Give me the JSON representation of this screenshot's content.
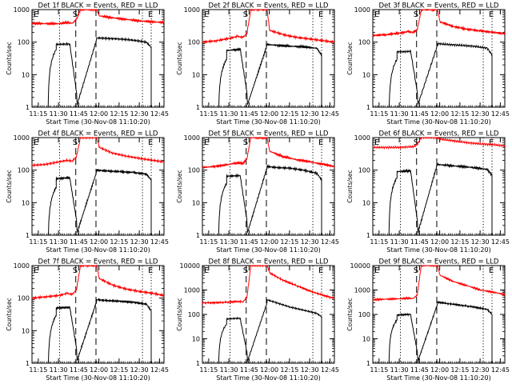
{
  "common": {
    "ylabel": "Counts/sec",
    "xlabel": "Start Time (30-Nov-08 11:10:20)",
    "x_ticks": [
      "11:15",
      "11:30",
      "11:45",
      "12:00",
      "12:15",
      "12:30",
      "12:45"
    ],
    "x_tick_minutes": [
      4.67,
      19.67,
      34.67,
      49.67,
      64.67,
      79.67,
      94.67
    ],
    "x_range_minutes": [
      0,
      98
    ],
    "y_scale": "log",
    "markers": [
      {
        "label": "E",
        "minute": 0,
        "style": "dotted"
      },
      {
        "label": "",
        "minute": 20.5,
        "style": "dotted"
      },
      {
        "label": "S",
        "minute": 32.5,
        "style": "dashed"
      },
      {
        "label": "",
        "minute": 47.5,
        "style": "dashed"
      },
      {
        "label": "",
        "minute": 82.0,
        "style": "dotted"
      },
      {
        "label": "E",
        "minute": 88.5,
        "style": "dotted"
      }
    ],
    "colors": {
      "events": "#000000",
      "lld": "#ff0000"
    }
  },
  "chart_data": [
    {
      "type": "line",
      "title": "Det 1f BLACK = Events, RED = LLD",
      "ylim": [
        1,
        1000
      ],
      "y_ticks": [
        "1",
        "10",
        "100",
        "1000"
      ],
      "series": [
        {
          "name": "BLACK = Events",
          "x": [
            12,
            18,
            18,
            28,
            28,
            33,
            33.5,
            48,
            48,
            55,
            65,
            75,
            85,
            88.5,
            88.5
          ],
          "y": [
            0,
            60,
            85,
            88,
            90,
            3,
            1.2,
            120,
            135,
            130,
            125,
            115,
            100,
            70,
            0
          ]
        },
        {
          "name": "RED = LLD",
          "x": [
            0,
            10,
            20,
            26,
            30,
            33,
            36,
            46,
            48,
            50,
            60,
            70,
            80,
            90,
            98
          ],
          "y": [
            380,
            370,
            370,
            400,
            380,
            500,
            1000,
            1000,
            1000,
            640,
            560,
            500,
            450,
            420,
            400
          ]
        }
      ]
    },
    {
      "type": "line",
      "title": "Det 2f BLACK = Events, RED = LLD",
      "ylim": [
        1,
        1000
      ],
      "y_ticks": [
        "1",
        "10",
        "100",
        "1000"
      ],
      "series": [
        {
          "name": "BLACK = Events",
          "x": [
            12,
            18,
            18,
            28,
            28,
            33,
            33.5,
            48,
            48,
            55,
            65,
            75,
            85,
            88.5,
            88.5
          ],
          "y": [
            0,
            30,
            55,
            60,
            65,
            3,
            1.2,
            80,
            85,
            80,
            75,
            72,
            65,
            40,
            0
          ]
        },
        {
          "name": "RED = LLD",
          "x": [
            0,
            10,
            20,
            26,
            30,
            33,
            36,
            46,
            48,
            50,
            60,
            70,
            80,
            90,
            98
          ],
          "y": [
            100,
            110,
            130,
            150,
            140,
            180,
            1000,
            1000,
            1000,
            230,
            170,
            140,
            125,
            110,
            100
          ]
        }
      ]
    },
    {
      "type": "line",
      "title": "Det 3f BLACK = Events, RED = LLD",
      "ylim": [
        1,
        1000
      ],
      "y_ticks": [
        "1",
        "10",
        "100",
        "1000"
      ],
      "series": [
        {
          "name": "BLACK = Events",
          "x": [
            12,
            18,
            18,
            28,
            28,
            33,
            33.5,
            48,
            48,
            55,
            65,
            75,
            85,
            88.5,
            88.5
          ],
          "y": [
            0,
            30,
            50,
            52,
            55,
            3,
            1.2,
            80,
            90,
            85,
            80,
            75,
            65,
            40,
            0
          ]
        },
        {
          "name": "RED = LLD",
          "x": [
            0,
            10,
            20,
            26,
            30,
            33,
            36,
            46,
            48,
            50,
            60,
            70,
            80,
            90,
            98
          ],
          "y": [
            160,
            170,
            190,
            210,
            200,
            240,
            1000,
            1000,
            1000,
            420,
            300,
            250,
            220,
            200,
            180
          ]
        }
      ]
    },
    {
      "type": "line",
      "title": "Det 4f BLACK = Events, RED = LLD",
      "ylim": [
        1,
        1000
      ],
      "y_ticks": [
        "1",
        "10",
        "100",
        "1000"
      ],
      "series": [
        {
          "name": "BLACK = Events",
          "x": [
            12,
            18,
            18,
            28,
            28,
            33,
            33.5,
            48,
            48,
            55,
            65,
            75,
            85,
            88.5,
            88.5
          ],
          "y": [
            0,
            30,
            55,
            58,
            60,
            3,
            1.2,
            90,
            100,
            95,
            90,
            85,
            75,
            50,
            0
          ]
        },
        {
          "name": "RED = LLD",
          "x": [
            0,
            10,
            20,
            26,
            30,
            33,
            36,
            46,
            48,
            50,
            60,
            70,
            80,
            90,
            98
          ],
          "y": [
            140,
            150,
            180,
            200,
            190,
            260,
            1000,
            1000,
            1000,
            500,
            330,
            270,
            230,
            200,
            180
          ]
        }
      ]
    },
    {
      "type": "line",
      "title": "Det 5f BLACK = Events, RED = LLD",
      "ylim": [
        1,
        1000
      ],
      "y_ticks": [
        "1",
        "10",
        "100",
        "1000"
      ],
      "series": [
        {
          "name": "BLACK = Events",
          "x": [
            12,
            18,
            18,
            28,
            28,
            33,
            33.5,
            48,
            48,
            55,
            65,
            75,
            85,
            88.5,
            88.5
          ],
          "y": [
            0,
            40,
            65,
            68,
            70,
            3,
            1.2,
            120,
            130,
            120,
            115,
            100,
            80,
            50,
            0
          ]
        },
        {
          "name": "RED = LLD",
          "x": [
            0,
            10,
            20,
            26,
            30,
            33,
            36,
            46,
            48,
            50,
            60,
            70,
            80,
            90,
            98
          ],
          "y": [
            120,
            130,
            150,
            170,
            160,
            220,
            1000,
            1000,
            1000,
            380,
            260,
            210,
            180,
            150,
            130
          ]
        }
      ]
    },
    {
      "type": "line",
      "title": "Det 6f BLACK = Events, RED = LLD",
      "ylim": [
        1,
        1000
      ],
      "y_ticks": [
        "1",
        "10",
        "100",
        "1000"
      ],
      "series": [
        {
          "name": "BLACK = Events",
          "x": [
            12,
            18,
            18,
            28,
            28,
            33,
            33.5,
            48,
            48,
            55,
            65,
            75,
            85,
            88.5,
            88.5
          ],
          "y": [
            0,
            60,
            90,
            95,
            100,
            3,
            1.2,
            160,
            150,
            140,
            130,
            120,
            105,
            70,
            0
          ]
        },
        {
          "name": "RED = LLD",
          "x": [
            0,
            10,
            20,
            26,
            30,
            33,
            36,
            46,
            48,
            50,
            60,
            70,
            80,
            90,
            98
          ],
          "y": [
            500,
            500,
            500,
            520,
            520,
            600,
            1000,
            1000,
            1000,
            900,
            800,
            700,
            640,
            600,
            560
          ]
        }
      ]
    },
    {
      "type": "line",
      "title": "Det 7f BLACK = Events, RED = LLD",
      "ylim": [
        1,
        1000
      ],
      "y_ticks": [
        "1",
        "10",
        "100",
        "1000"
      ],
      "series": [
        {
          "name": "BLACK = Events",
          "x": [
            12,
            18,
            18,
            28,
            28,
            33,
            33.5,
            48,
            48,
            55,
            65,
            75,
            85,
            88.5,
            88.5
          ],
          "y": [
            0,
            30,
            50,
            52,
            55,
            3,
            1.2,
            80,
            90,
            85,
            80,
            75,
            65,
            40,
            0
          ]
        },
        {
          "name": "RED = LLD",
          "x": [
            0,
            10,
            20,
            26,
            30,
            33,
            36,
            46,
            48,
            50,
            60,
            70,
            80,
            90,
            98
          ],
          "y": [
            100,
            110,
            120,
            140,
            130,
            180,
            1000,
            1000,
            1000,
            400,
            250,
            190,
            160,
            140,
            120
          ]
        }
      ]
    },
    {
      "type": "line",
      "title": "Det 8f BLACK = Events, RED = LLD",
      "ylim": [
        1,
        10000
      ],
      "y_ticks": [
        "1",
        "10",
        "100",
        "1000",
        "10000"
      ],
      "series": [
        {
          "name": "BLACK = Events",
          "x": [
            12,
            18,
            18,
            28,
            28,
            33,
            33.5,
            48,
            48,
            55,
            65,
            75,
            85,
            88.5,
            88.5
          ],
          "y": [
            0,
            40,
            65,
            70,
            70,
            3,
            1.2,
            300,
            400,
            300,
            200,
            150,
            110,
            80,
            0
          ]
        },
        {
          "name": "RED = LLD",
          "x": [
            0,
            10,
            20,
            26,
            30,
            33,
            36,
            46,
            48,
            50,
            60,
            70,
            80,
            90,
            98
          ],
          "y": [
            300,
            300,
            320,
            340,
            330,
            480,
            10000,
            10000,
            10000,
            5000,
            2500,
            1500,
            900,
            600,
            450
          ]
        }
      ]
    },
    {
      "type": "line",
      "title": "Det 9f BLACK = Events, RED = LLD",
      "ylim": [
        1,
        10000
      ],
      "y_ticks": [
        "1",
        "10",
        "100",
        "1000",
        "10000"
      ],
      "series": [
        {
          "name": "BLACK = Events",
          "x": [
            12,
            18,
            18,
            28,
            28,
            33,
            33.5,
            48,
            48,
            55,
            65,
            75,
            85,
            88.5,
            88.5
          ],
          "y": [
            0,
            60,
            95,
            100,
            100,
            3,
            1.2,
            260,
            320,
            280,
            240,
            200,
            160,
            100,
            0
          ]
        },
        {
          "name": "RED = LLD",
          "x": [
            0,
            10,
            20,
            26,
            30,
            33,
            36,
            46,
            48,
            50,
            60,
            70,
            80,
            90,
            98
          ],
          "y": [
            400,
            420,
            440,
            460,
            450,
            620,
            10000,
            10000,
            10000,
            4000,
            2200,
            1500,
            1000,
            800,
            650
          ]
        }
      ]
    }
  ]
}
